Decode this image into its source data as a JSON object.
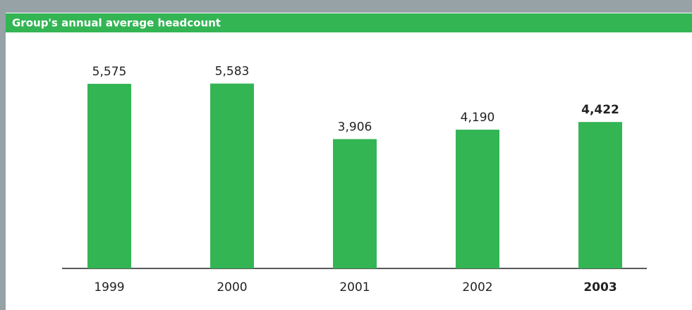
{
  "chart_data": {
    "type": "bar",
    "title": "Group's annual average headcount",
    "categories": [
      "1999",
      "2000",
      "2001",
      "2002",
      "2003"
    ],
    "values": [
      5575,
      5583,
      3906,
      4190,
      4422
    ],
    "value_labels": [
      "5,575",
      "5,583",
      "3,906",
      "4,190",
      "4,422"
    ],
    "color": "#33b554"
  }
}
